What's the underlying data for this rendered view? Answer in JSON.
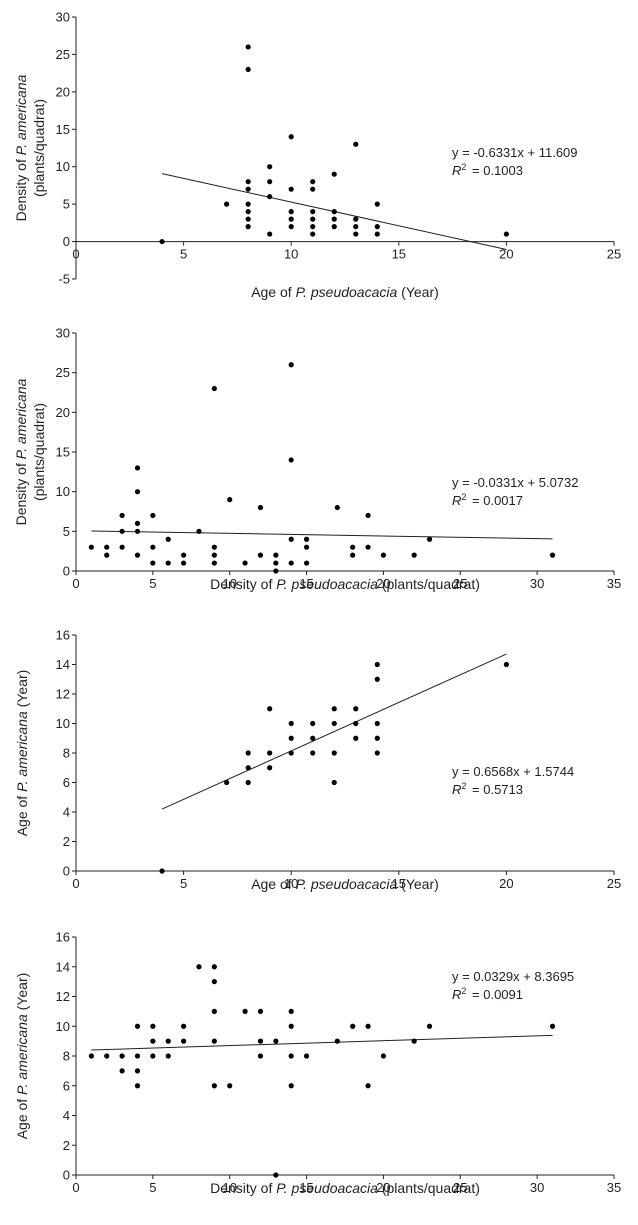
{
  "chart_data": [
    {
      "type": "scatter",
      "xlabel": "Age of P. pseudoacacia (Year)",
      "xlabel_parts": [
        "Age of ",
        "P. pseudoacacia",
        " (Year)"
      ],
      "ylabel_line1_parts": [
        "Density of ",
        "P. americana"
      ],
      "ylabel_line2": "(plants/quadrat)",
      "xlim": [
        0,
        25
      ],
      "ylim": [
        -5,
        30
      ],
      "xticks": [
        0,
        5,
        10,
        15,
        20,
        25
      ],
      "yticks": [
        -5,
        0,
        5,
        10,
        15,
        20,
        25,
        30
      ],
      "equation": "y = -0.6331x + 11.609",
      "r2_label": "R",
      "r2_value": "= 0.1003",
      "trendline": {
        "x": [
          4,
          20
        ]
      },
      "slope": -0.6331,
      "intercept": 11.609,
      "points": [
        [
          4,
          0
        ],
        [
          7,
          5
        ],
        [
          8,
          2
        ],
        [
          8,
          3
        ],
        [
          8,
          4
        ],
        [
          8,
          5
        ],
        [
          8,
          7
        ],
        [
          8,
          8
        ],
        [
          8,
          23
        ],
        [
          8,
          26
        ],
        [
          9,
          1
        ],
        [
          9,
          6
        ],
        [
          9,
          8
        ],
        [
          9,
          10
        ],
        [
          10,
          2
        ],
        [
          10,
          3
        ],
        [
          10,
          4
        ],
        [
          10,
          7
        ],
        [
          10,
          14
        ],
        [
          11,
          1
        ],
        [
          11,
          2
        ],
        [
          11,
          3
        ],
        [
          11,
          4
        ],
        [
          11,
          7
        ],
        [
          11,
          8
        ],
        [
          12,
          2
        ],
        [
          12,
          3
        ],
        [
          12,
          4
        ],
        [
          12,
          9
        ],
        [
          13,
          1
        ],
        [
          13,
          2
        ],
        [
          13,
          3
        ],
        [
          13,
          13
        ],
        [
          14,
          1
        ],
        [
          14,
          2
        ],
        [
          14,
          5
        ],
        [
          20,
          1
        ]
      ]
    },
    {
      "type": "scatter",
      "xlabel": "Density of P. pseudoacacia (plants/quadrat)",
      "xlabel_parts": [
        "Density of ",
        "P. pseudoacacia",
        " (plants/quadrat)"
      ],
      "ylabel_line1_parts": [
        "Density of ",
        "P. americana"
      ],
      "ylabel_line2": "(plants/quadrat)",
      "xlim": [
        0,
        35
      ],
      "ylim": [
        0,
        30
      ],
      "xticks": [
        0,
        5,
        10,
        15,
        20,
        25,
        30,
        35
      ],
      "yticks": [
        0,
        5,
        10,
        15,
        20,
        25,
        30
      ],
      "equation": "y = -0.0331x + 5.0732",
      "r2_label": "R",
      "r2_value": "= 0.0017",
      "trendline": {
        "x": [
          1,
          31
        ]
      },
      "slope": -0.0331,
      "intercept": 5.0732,
      "points": [
        [
          1,
          3
        ],
        [
          2,
          2
        ],
        [
          2,
          3
        ],
        [
          3,
          3
        ],
        [
          3,
          5
        ],
        [
          3,
          7
        ],
        [
          4,
          2
        ],
        [
          4,
          5
        ],
        [
          4,
          6
        ],
        [
          4,
          10
        ],
        [
          4,
          13
        ],
        [
          5,
          1
        ],
        [
          5,
          3
        ],
        [
          5,
          7
        ],
        [
          6,
          1
        ],
        [
          6,
          4
        ],
        [
          7,
          1
        ],
        [
          7,
          2
        ],
        [
          8,
          5
        ],
        [
          9,
          1
        ],
        [
          9,
          2
        ],
        [
          9,
          3
        ],
        [
          9,
          23
        ],
        [
          10,
          9
        ],
        [
          11,
          1
        ],
        [
          12,
          2
        ],
        [
          12,
          8
        ],
        [
          13,
          0
        ],
        [
          13,
          1
        ],
        [
          13,
          2
        ],
        [
          14,
          1
        ],
        [
          14,
          4
        ],
        [
          14,
          14
        ],
        [
          14,
          26
        ],
        [
          15,
          1
        ],
        [
          15,
          3
        ],
        [
          15,
          4
        ],
        [
          17,
          8
        ],
        [
          18,
          2
        ],
        [
          18,
          3
        ],
        [
          19,
          3
        ],
        [
          19,
          7
        ],
        [
          20,
          2
        ],
        [
          22,
          2
        ],
        [
          23,
          4
        ],
        [
          31,
          2
        ]
      ]
    },
    {
      "type": "scatter",
      "xlabel": "Age of P. pseudoacacia (Year)",
      "xlabel_parts": [
        "Age of ",
        "P. pseudoacacia",
        " (Year)"
      ],
      "ylabel_line1_parts": [
        "Age of ",
        "P. americana",
        " (Year)"
      ],
      "ylabel_line2": "",
      "xlim": [
        0,
        25
      ],
      "ylim": [
        0,
        16
      ],
      "xticks": [
        0,
        5,
        10,
        15,
        20,
        25
      ],
      "yticks": [
        0,
        2,
        4,
        6,
        8,
        10,
        12,
        14,
        16
      ],
      "equation": "y = 0.6568x + 1.5744",
      "r2_label": "R",
      "r2_value": "= 0.5713",
      "trendline": {
        "x": [
          4,
          20
        ]
      },
      "slope": 0.6568,
      "intercept": 1.5744,
      "points": [
        [
          4,
          0
        ],
        [
          7,
          6
        ],
        [
          8,
          6
        ],
        [
          8,
          7
        ],
        [
          8,
          8
        ],
        [
          9,
          7
        ],
        [
          9,
          8
        ],
        [
          9,
          11
        ],
        [
          10,
          8
        ],
        [
          10,
          9
        ],
        [
          10,
          10
        ],
        [
          11,
          8
        ],
        [
          11,
          9
        ],
        [
          11,
          10
        ],
        [
          12,
          6
        ],
        [
          12,
          8
        ],
        [
          12,
          10
        ],
        [
          12,
          11
        ],
        [
          13,
          9
        ],
        [
          13,
          10
        ],
        [
          13,
          11
        ],
        [
          14,
          8
        ],
        [
          14,
          9
        ],
        [
          14,
          10
        ],
        [
          14,
          13
        ],
        [
          14,
          14
        ],
        [
          20,
          14
        ]
      ]
    },
    {
      "type": "scatter",
      "xlabel": "Density of P. pseudoacacia (plants/quadrat)",
      "xlabel_parts": [
        "Density of ",
        "P. pseudoacacia",
        " (plants/quadrat)"
      ],
      "ylabel_line1_parts": [
        "Age of ",
        "P. americana",
        " (Year)"
      ],
      "ylabel_line2": "",
      "xlim": [
        0,
        35
      ],
      "ylim": [
        0,
        16
      ],
      "xticks": [
        0,
        5,
        10,
        15,
        20,
        25,
        30,
        35
      ],
      "yticks": [
        0,
        2,
        4,
        6,
        8,
        10,
        12,
        14,
        16
      ],
      "equation": "y = 0.0329x + 8.3695",
      "r2_label": "R",
      "r2_value": "= 0.0091",
      "trendline": {
        "x": [
          1,
          31
        ]
      },
      "slope": 0.0329,
      "intercept": 8.3695,
      "points": [
        [
          1,
          8
        ],
        [
          2,
          8
        ],
        [
          3,
          7
        ],
        [
          3,
          8
        ],
        [
          4,
          6
        ],
        [
          4,
          7
        ],
        [
          4,
          8
        ],
        [
          4,
          10
        ],
        [
          5,
          8
        ],
        [
          5,
          9
        ],
        [
          5,
          10
        ],
        [
          6,
          8
        ],
        [
          6,
          9
        ],
        [
          7,
          9
        ],
        [
          7,
          10
        ],
        [
          8,
          14
        ],
        [
          9,
          6
        ],
        [
          9,
          9
        ],
        [
          9,
          11
        ],
        [
          9,
          13
        ],
        [
          9,
          14
        ],
        [
          10,
          6
        ],
        [
          11,
          11
        ],
        [
          12,
          8
        ],
        [
          12,
          9
        ],
        [
          12,
          11
        ],
        [
          13,
          0
        ],
        [
          13,
          9
        ],
        [
          14,
          6
        ],
        [
          14,
          8
        ],
        [
          14,
          10
        ],
        [
          14,
          11
        ],
        [
          15,
          8
        ],
        [
          17,
          9
        ],
        [
          18,
          10
        ],
        [
          19,
          6
        ],
        [
          19,
          10
        ],
        [
          20,
          8
        ],
        [
          22,
          9
        ],
        [
          23,
          10
        ],
        [
          31,
          10
        ]
      ]
    }
  ]
}
